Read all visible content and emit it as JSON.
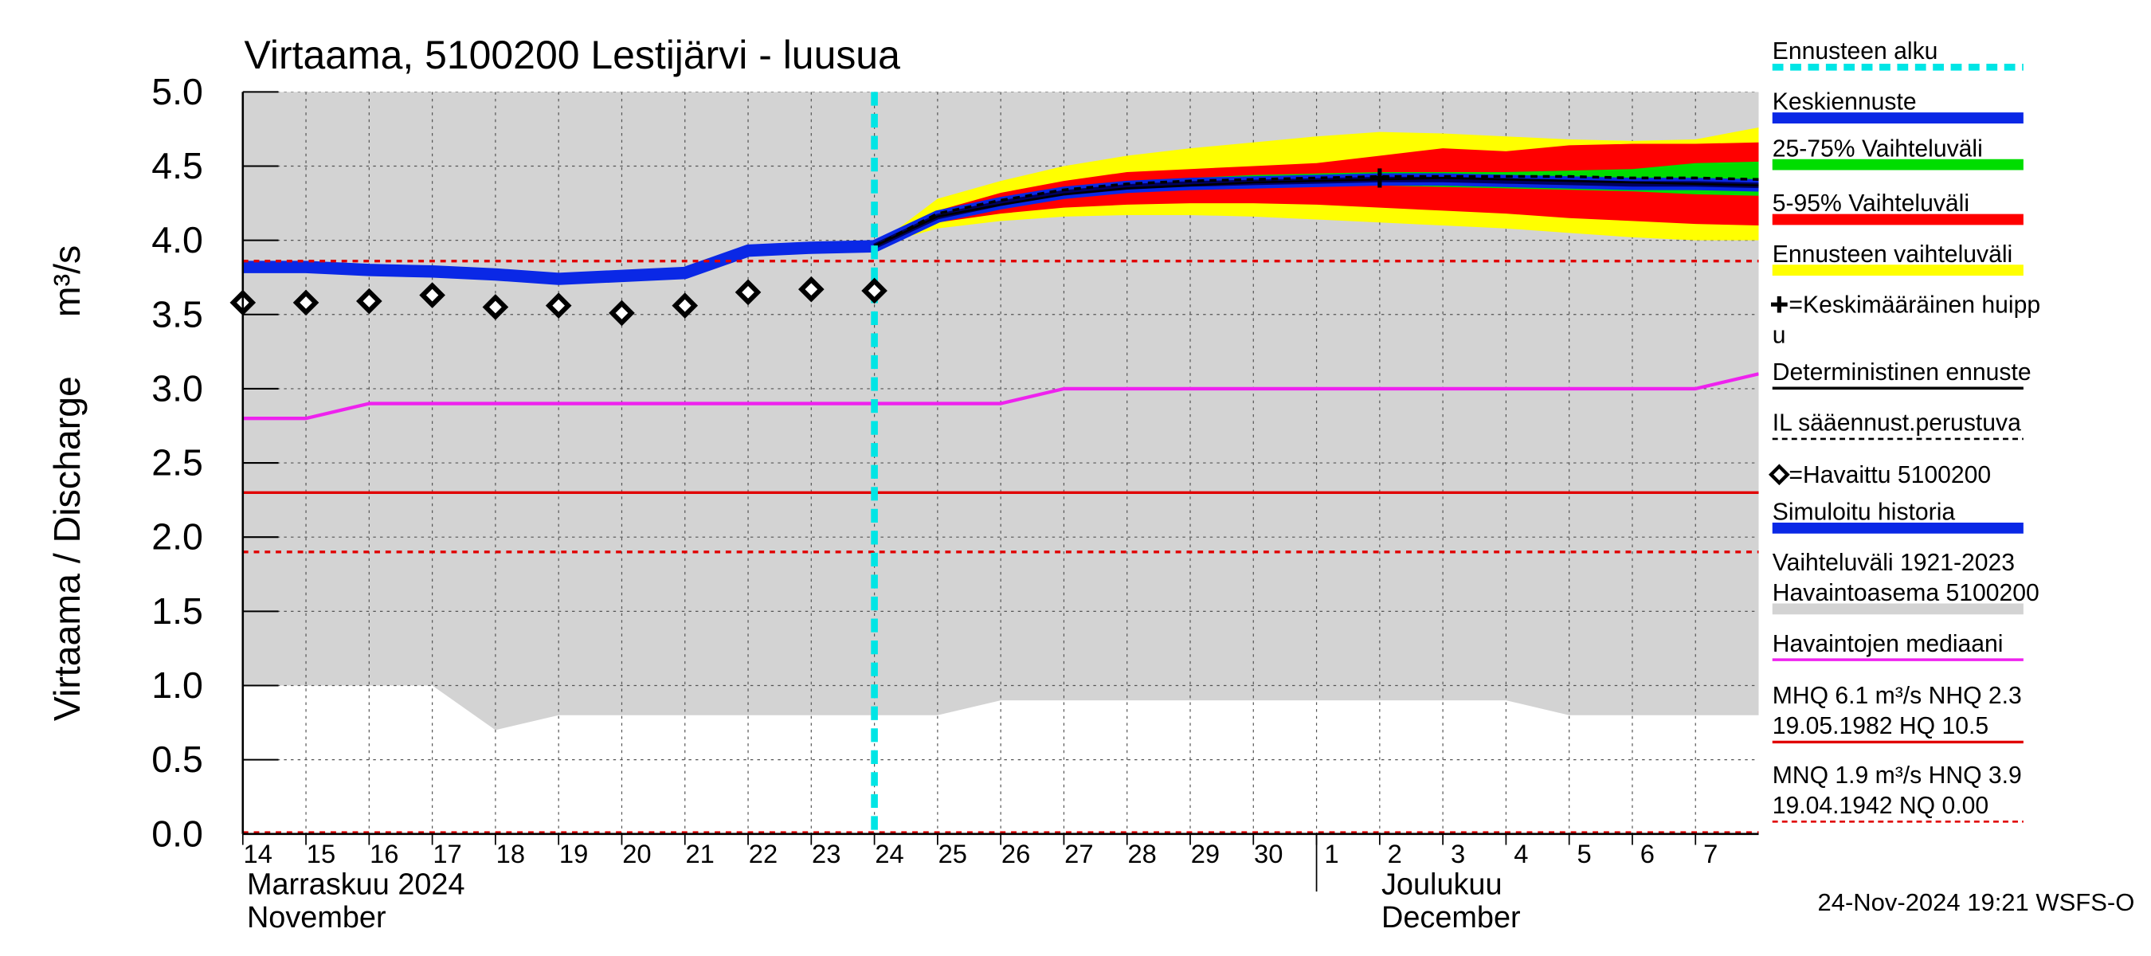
{
  "chart_data": {
    "type": "hydrograph",
    "title": "Virtaama, 5100200 Lestijärvi - luusua",
    "y_label": "Virtaama / Discharge",
    "y_unit": "m³/s",
    "timestamp": "24-Nov-2024 19:21 WSFS-O",
    "months": [
      [
        "Marraskuu 2024",
        "November"
      ],
      [
        "Joulukuu",
        "December"
      ]
    ],
    "xlim": [
      0,
      24
    ],
    "xticks": [
      {
        "value": 0,
        "label": "14"
      },
      {
        "value": 1,
        "label": "15"
      },
      {
        "value": 2,
        "label": "16"
      },
      {
        "value": 3,
        "label": "17"
      },
      {
        "value": 4,
        "label": "18"
      },
      {
        "value": 5,
        "label": "19"
      },
      {
        "value": 6,
        "label": "20"
      },
      {
        "value": 7,
        "label": "21"
      },
      {
        "value": 8,
        "label": "22"
      },
      {
        "value": 9,
        "label": "23"
      },
      {
        "value": 10,
        "label": "24"
      },
      {
        "value": 11,
        "label": "25"
      },
      {
        "value": 12,
        "label": "26"
      },
      {
        "value": 13,
        "label": "27"
      },
      {
        "value": 14,
        "label": "28"
      },
      {
        "value": 15,
        "label": "29"
      },
      {
        "value": 16,
        "label": "30"
      },
      {
        "value": 17,
        "label": "1"
      },
      {
        "value": 18,
        "label": "2"
      },
      {
        "value": 19,
        "label": "3"
      },
      {
        "value": 20,
        "label": "4"
      },
      {
        "value": 21,
        "label": "5"
      },
      {
        "value": 22,
        "label": "6"
      },
      {
        "value": 23,
        "label": "7"
      }
    ],
    "ylim": [
      0,
      5
    ],
    "yticks": [
      {
        "value": 0,
        "label": "0.0"
      },
      0.5,
      {
        "value": 1,
        "label": "1.0"
      },
      1.5,
      {
        "value": 2,
        "label": "2.0"
      },
      2.5,
      {
        "value": 3,
        "label": "3.0"
      },
      3.5,
      {
        "value": 4,
        "label": "4.0"
      },
      4.5,
      {
        "value": 5,
        "label": "5.0"
      }
    ],
    "grid": true,
    "forecast_start": 10,
    "forecast_start_color": "#00e5e5",
    "reference_lines": [
      {
        "value": 2.3,
        "color": "#e00000",
        "dashed": false
      },
      {
        "value": 1.9,
        "color": "#e00000",
        "dashed": true
      },
      {
        "value": 3.86,
        "color": "#e00000",
        "dashed": true
      },
      {
        "value": 0,
        "color": "#e00000",
        "dashed": true
      }
    ],
    "series": [
      {
        "style": "band",
        "color": "#d3d3d3",
        "x": [
          0,
          3,
          4,
          5,
          11,
          12,
          20,
          21,
          24
        ],
        "low": [
          1.0,
          1.0,
          0.7,
          0.8,
          0.8,
          0.9,
          0.9,
          0.8,
          0.8
        ],
        "high": [
          5,
          5,
          5,
          5,
          5,
          5,
          5,
          5,
          5
        ]
      },
      {
        "style": "band",
        "color": "#ffff00",
        "x": [
          10,
          11,
          12,
          13,
          14,
          15,
          16,
          17,
          18,
          19,
          20,
          21,
          22,
          23,
          24
        ],
        "low": [
          3.96,
          4.08,
          4.13,
          4.16,
          4.17,
          4.17,
          4.16,
          4.14,
          4.12,
          4.1,
          4.08,
          4.05,
          4.02,
          4.0,
          4.0
        ],
        "high": [
          3.96,
          4.28,
          4.4,
          4.5,
          4.57,
          4.62,
          4.66,
          4.7,
          4.73,
          4.72,
          4.7,
          4.68,
          4.67,
          4.68,
          4.76
        ]
      },
      {
        "style": "band",
        "color": "#ff0000",
        "x": [
          10,
          11,
          12,
          13,
          14,
          15,
          16,
          17,
          18,
          19,
          20,
          21,
          22,
          23,
          24
        ],
        "low": [
          3.96,
          4.12,
          4.18,
          4.22,
          4.24,
          4.25,
          4.25,
          4.24,
          4.22,
          4.2,
          4.18,
          4.15,
          4.13,
          4.11,
          4.1
        ],
        "high": [
          3.96,
          4.2,
          4.32,
          4.4,
          4.46,
          4.48,
          4.5,
          4.52,
          4.57,
          4.62,
          4.6,
          4.64,
          4.65,
          4.65,
          4.66
        ]
      },
      {
        "style": "band",
        "color": "#00dd00",
        "x": [
          10,
          11,
          12,
          13,
          14,
          15,
          16,
          17,
          18,
          19,
          20,
          21,
          22,
          23,
          24
        ],
        "low": [
          3.96,
          4.15,
          4.22,
          4.29,
          4.33,
          4.35,
          4.36,
          4.37,
          4.37,
          4.36,
          4.35,
          4.34,
          4.33,
          4.31,
          4.3
        ],
        "high": [
          3.96,
          4.17,
          4.27,
          4.35,
          4.4,
          4.42,
          4.44,
          4.45,
          4.46,
          4.46,
          4.46,
          4.47,
          4.48,
          4.52,
          4.53
        ]
      },
      {
        "style": "line",
        "color": "#ee22ee",
        "width": 2.5,
        "x": [
          0,
          1,
          2,
          12,
          13,
          23,
          24
        ],
        "values": [
          2.8,
          2.8,
          2.9,
          2.9,
          3.0,
          3.0,
          3.1
        ]
      },
      {
        "style": "line",
        "color": "#0a28e6",
        "width": 9,
        "x": [
          0,
          1,
          2,
          3,
          4,
          5,
          6,
          7,
          8,
          9,
          10
        ],
        "values": [
          3.82,
          3.82,
          3.8,
          3.79,
          3.77,
          3.74,
          3.76,
          3.78,
          3.93,
          3.95,
          3.96
        ]
      },
      {
        "style": "mean",
        "color": "#0a28e6",
        "x": [
          10,
          11,
          12,
          13,
          14,
          15,
          16,
          17,
          18,
          19,
          20,
          21,
          22,
          23,
          24
        ],
        "values": [
          3.96,
          4.16,
          4.25,
          4.32,
          4.36,
          4.38,
          4.39,
          4.4,
          4.41,
          4.41,
          4.4,
          4.39,
          4.38,
          4.38,
          4.37
        ]
      },
      {
        "style": "line",
        "color": "#000000",
        "width": 1.5,
        "x": [
          10,
          11,
          12,
          13,
          14,
          15,
          16,
          17,
          18,
          19,
          20,
          21,
          22,
          23,
          24
        ],
        "values": [
          3.96,
          4.16,
          4.24,
          4.31,
          4.35,
          4.37,
          4.39,
          4.4,
          4.41,
          4.42,
          4.41,
          4.4,
          4.39,
          4.38,
          4.37
        ]
      },
      {
        "style": "dashed",
        "color": "#000000",
        "width": 2,
        "x": [
          10,
          11,
          12,
          13,
          14,
          15,
          16,
          17,
          18,
          19,
          20,
          21,
          22,
          23,
          24
        ],
        "values": [
          3.96,
          4.18,
          4.27,
          4.34,
          4.38,
          4.4,
          4.41,
          4.42,
          4.43,
          4.43,
          4.43,
          4.43,
          4.42,
          4.42,
          4.41
        ]
      },
      {
        "style": "diamond",
        "color": "#000000",
        "x": [
          0,
          1,
          2,
          3,
          4,
          5,
          6,
          7,
          8,
          9,
          10
        ],
        "values": [
          3.58,
          3.58,
          3.59,
          3.63,
          3.55,
          3.56,
          3.51,
          3.56,
          3.65,
          3.67,
          3.66
        ]
      },
      {
        "style": "plus",
        "color": "#000000",
        "x": [
          18
        ],
        "values": [
          4.42
        ]
      }
    ],
    "legend": [
      {
        "text": [
          "Ennusteen alku"
        ],
        "color": "#00e5e5",
        "line": "dashed-thick"
      },
      {
        "text": [
          "Keskiennuste"
        ],
        "color": "#0a28e6",
        "line": "thick"
      },
      {
        "text": [
          "25-75% Vaihteluväli"
        ],
        "color": "#00dd00",
        "line": "thick"
      },
      {
        "text": [
          "5-95% Vaihteluväli"
        ],
        "color": "#ff0000",
        "line": "thick"
      },
      {
        "text": [
          "Ennusteen vaihteluväli"
        ],
        "color": "#ffff00",
        "line": "thick"
      },
      {
        "text": [
          "=Keskimääräinen huipp",
          "u"
        ],
        "color": "#000000",
        "marker": "plus"
      },
      {
        "text": [
          "Deterministinen ennuste"
        ],
        "color": "#000000",
        "line": "thin"
      },
      {
        "text": [
          "IL sääennust.perustuva"
        ],
        "color": "#000000",
        "line": "dashed"
      },
      {
        "text": [
          "=Havaittu 5100200"
        ],
        "color": "#000000",
        "marker": "diamond"
      },
      {
        "text": [
          "Simuloitu historia"
        ],
        "color": "#0a28e6",
        "line": "thick"
      },
      {
        "text": [
          "Vaihteluväli 1921-2023",
          " Havaintoasema 5100200"
        ],
        "color": "#d3d3d3",
        "line": "thick"
      },
      {
        "text": [
          "Havaintojen mediaani"
        ],
        "color": "#ee22ee",
        "line": "thin"
      },
      {
        "text": [
          "MHQ  6.1 m³/s NHQ  2.3",
          "19.05.1982 HQ 10.5"
        ],
        "color": "#e00000",
        "line": "thin"
      },
      {
        "text": [
          "MNQ  1.9 m³/s HNQ  3.9",
          "19.04.1942 NQ 0.00"
        ],
        "color": "#e00000",
        "line": "dashed"
      }
    ]
  }
}
